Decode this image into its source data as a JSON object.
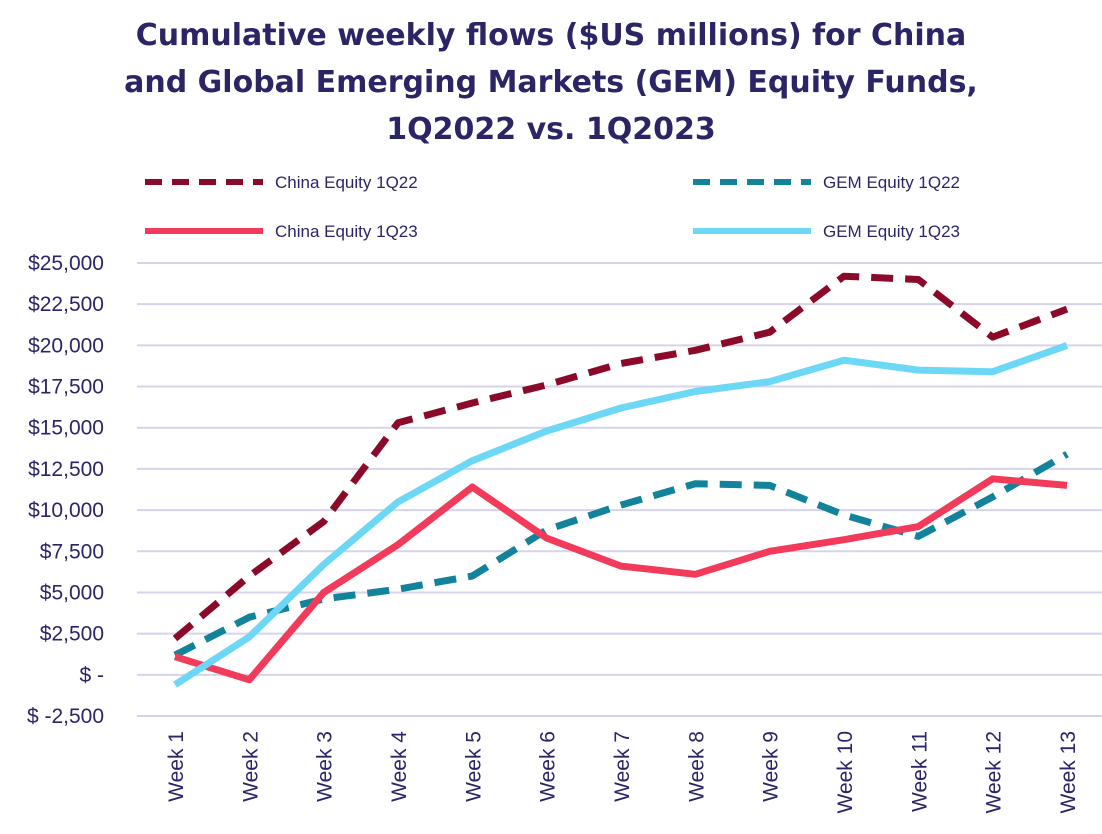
{
  "chart_data": {
    "type": "line",
    "title_lines": [
      "Cumulative weekly flows ($US millions) for China",
      "and Global Emerging Markets (GEM) Equity Funds,",
      "1Q2022 vs. 1Q2023"
    ],
    "categories": [
      "Week 1",
      "Week 2",
      "Week 3",
      "Week 4",
      "Week 5",
      "Week 6",
      "Week 7",
      "Week 8",
      "Week 9",
      "Week 10",
      "Week 11",
      "Week 12",
      "Week 13"
    ],
    "yticks": [
      {
        "value": 25000,
        "label": "$25,000"
      },
      {
        "value": 22500,
        "label": "$22,500"
      },
      {
        "value": 20000,
        "label": "$20,000"
      },
      {
        "value": 17500,
        "label": "$17,500"
      },
      {
        "value": 15000,
        "label": "$15,000"
      },
      {
        "value": 12500,
        "label": "$12,500"
      },
      {
        "value": 10000,
        "label": "$10,000"
      },
      {
        "value": 7500,
        "label": "$7,500"
      },
      {
        "value": 5000,
        "label": "$5,000"
      },
      {
        "value": 2500,
        "label": "$2,500"
      },
      {
        "value": 0,
        "label": "$ -"
      },
      {
        "value": -2500,
        "label": "$ -2,500"
      }
    ],
    "ylim": [
      -2500,
      25000
    ],
    "grid": true,
    "legend_position": "top",
    "series": [
      {
        "name": "China Equity 1Q22",
        "color": "#8b0a2a",
        "dashed": true,
        "values": [
          2200,
          6000,
          9300,
          15300,
          16500,
          17600,
          18900,
          19700,
          20800,
          24200,
          24000,
          20500,
          22200
        ]
      },
      {
        "name": "GEM Equity 1Q22",
        "color": "#12839a",
        "dashed": true,
        "values": [
          1200,
          3500,
          4600,
          5200,
          6000,
          8800,
          10300,
          11600,
          11500,
          9700,
          8400,
          10800,
          13400
        ]
      },
      {
        "name": "China Equity 1Q23",
        "color": "#f23b5a",
        "dashed": false,
        "values": [
          1100,
          -300,
          5000,
          7900,
          11400,
          8300,
          6600,
          6100,
          7500,
          8200,
          9000,
          11900,
          11500
        ]
      },
      {
        "name": "GEM Equity 1Q23",
        "color": "#6cd8f5",
        "dashed": false,
        "values": [
          -600,
          2300,
          6700,
          10500,
          13000,
          14800,
          16200,
          17200,
          17800,
          19100,
          18500,
          18400,
          20000
        ]
      }
    ]
  }
}
